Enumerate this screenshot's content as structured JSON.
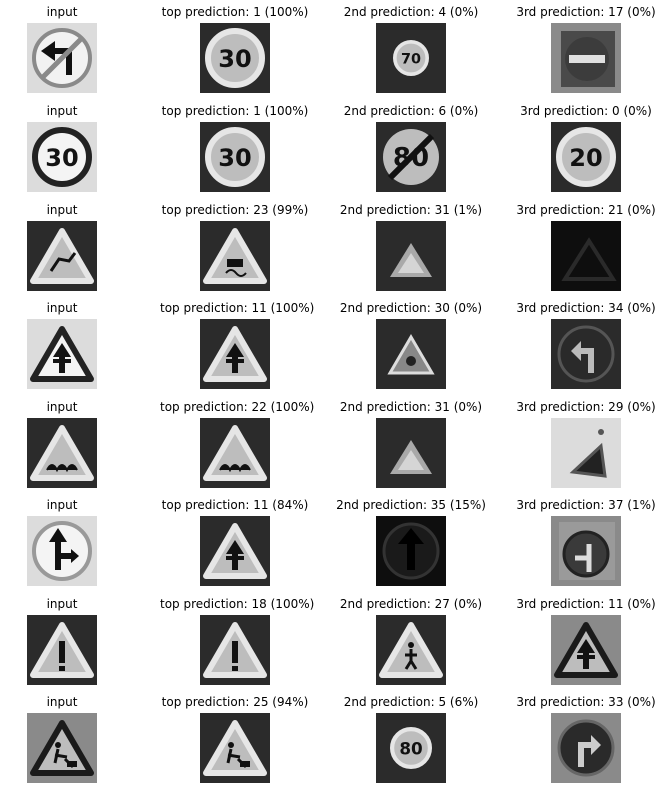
{
  "grid": {
    "rows": [
      {
        "cells": [
          {
            "caption": "input",
            "icon": "no-left-turn-sign-icon",
            "tone": "light"
          },
          {
            "caption": "top prediction: 1 (100%)",
            "icon": "speed-limit-30-sign-icon",
            "tone": "dark"
          },
          {
            "caption": "2nd prediction: 4 (0%)",
            "icon": "speed-limit-70-sign-icon",
            "tone": "dark"
          },
          {
            "caption": "3rd prediction: 17 (0%)",
            "icon": "no-entry-sign-icon",
            "tone": "mid"
          }
        ]
      },
      {
        "cells": [
          {
            "caption": "input",
            "icon": "speed-limit-30-sign-icon",
            "tone": "light"
          },
          {
            "caption": "top prediction: 1 (100%)",
            "icon": "speed-limit-30-sign-icon",
            "tone": "dark"
          },
          {
            "caption": "2nd prediction: 6 (0%)",
            "icon": "end-speed-limit-80-sign-icon",
            "tone": "dark"
          },
          {
            "caption": "3rd prediction: 0 (0%)",
            "icon": "speed-limit-20-sign-icon",
            "tone": "dark"
          }
        ]
      },
      {
        "cells": [
          {
            "caption": "input",
            "icon": "wild-animals-warning-sign-icon",
            "tone": "dark"
          },
          {
            "caption": "top prediction: 23 (99%)",
            "icon": "slippery-road-warning-sign-icon",
            "tone": "dark"
          },
          {
            "caption": "2nd prediction: 31 (1%)",
            "icon": "blurry-warning-sign-icon",
            "tone": "dark"
          },
          {
            "caption": "3rd prediction: 21 (0%)",
            "icon": "dark-warning-sign-icon",
            "tone": "black"
          }
        ]
      },
      {
        "cells": [
          {
            "caption": "input",
            "icon": "right-of-way-warning-sign-icon",
            "tone": "light"
          },
          {
            "caption": "top prediction: 11 (100%)",
            "icon": "right-of-way-warning-sign-icon",
            "tone": "dark"
          },
          {
            "caption": "2nd prediction: 30 (0%)",
            "icon": "ice-snow-warning-sign-icon",
            "tone": "dark"
          },
          {
            "caption": "3rd prediction: 34 (0%)",
            "icon": "turn-left-ahead-sign-icon",
            "tone": "dark"
          }
        ]
      },
      {
        "cells": [
          {
            "caption": "input",
            "icon": "bumpy-road-warning-sign-icon",
            "tone": "dark"
          },
          {
            "caption": "top prediction: 22 (100%)",
            "icon": "bumpy-road-warning-sign-icon",
            "tone": "dark"
          },
          {
            "caption": "2nd prediction: 31 (0%)",
            "icon": "blurry-warning-sign-icon",
            "tone": "dark"
          },
          {
            "caption": "3rd prediction: 29 (0%)",
            "icon": "tilted-warning-sign-icon",
            "tone": "light"
          }
        ]
      },
      {
        "cells": [
          {
            "caption": "input",
            "icon": "straight-or-right-sign-icon",
            "tone": "light"
          },
          {
            "caption": "top prediction: 11 (84%)",
            "icon": "right-of-way-warning-sign-icon",
            "tone": "dark"
          },
          {
            "caption": "2nd prediction: 35 (15%)",
            "icon": "ahead-only-sign-icon",
            "tone": "black"
          },
          {
            "caption": "3rd prediction: 37 (1%)",
            "icon": "go-straight-or-left-sign-icon",
            "tone": "mid"
          }
        ]
      },
      {
        "cells": [
          {
            "caption": "input",
            "icon": "general-caution-sign-icon",
            "tone": "dark"
          },
          {
            "caption": "top prediction: 18 (100%)",
            "icon": "general-caution-sign-icon",
            "tone": "dark"
          },
          {
            "caption": "2nd prediction: 27 (0%)",
            "icon": "pedestrians-warning-sign-icon",
            "tone": "dark"
          },
          {
            "caption": "3rd prediction: 11 (0%)",
            "icon": "right-of-way-warning-sign-icon",
            "tone": "mid"
          }
        ]
      },
      {
        "cells": [
          {
            "caption": "input",
            "icon": "road-work-warning-sign-icon",
            "tone": "mid"
          },
          {
            "caption": "top prediction: 25 (94%)",
            "icon": "road-work-warning-sign-icon",
            "tone": "dark"
          },
          {
            "caption": "2nd prediction: 5 (6%)",
            "icon": "speed-limit-80-sign-icon",
            "tone": "dark"
          },
          {
            "caption": "3rd prediction: 33 (0%)",
            "icon": "turn-right-ahead-sign-icon",
            "tone": "mid"
          }
        ]
      }
    ]
  }
}
